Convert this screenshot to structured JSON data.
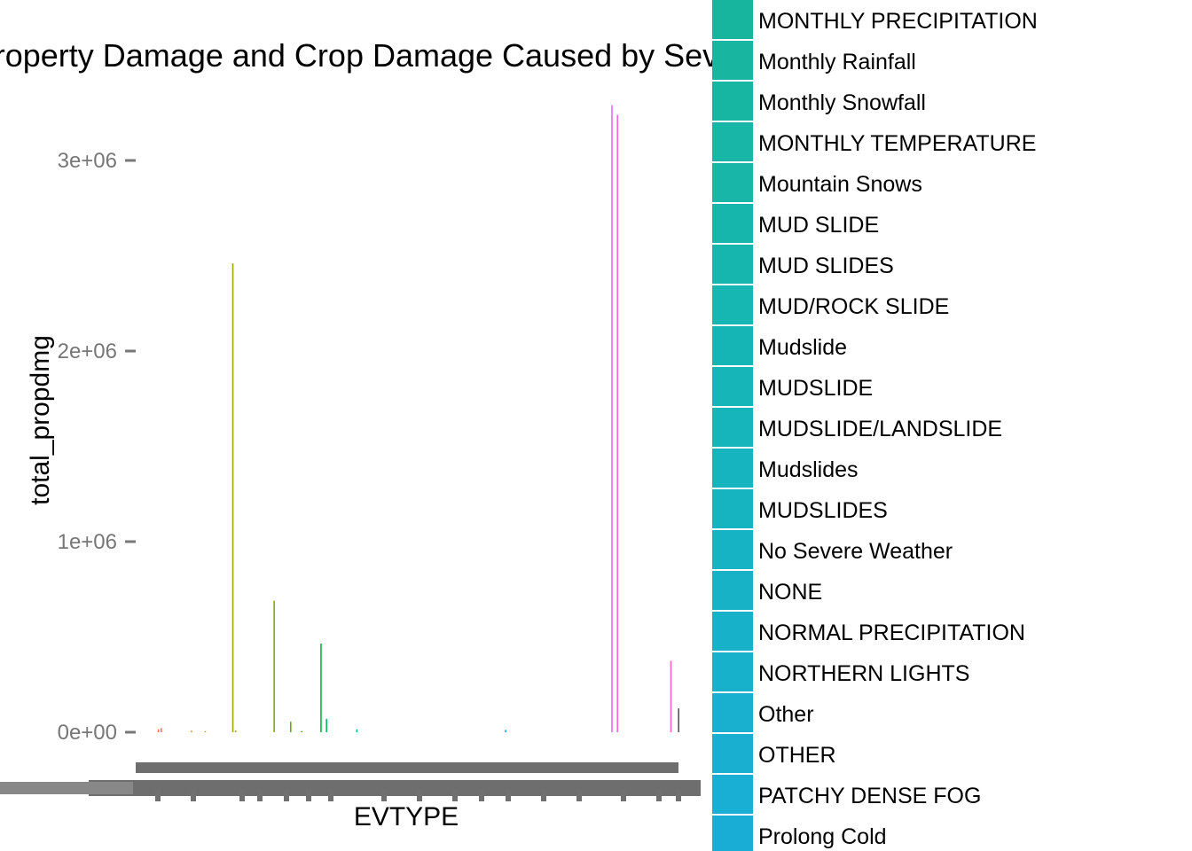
{
  "chart_data": {
    "type": "bar",
    "title": "Property Damage and Crop Damage Caused by Severe Events",
    "xlabel": "EVTYPE",
    "ylabel": "total_propdmg",
    "ylim": [
      0,
      3300000
    ],
    "yticks": [
      {
        "value": 0,
        "label": "0e+00"
      },
      {
        "value": 1000000,
        "label": "1e+06"
      },
      {
        "value": 2000000,
        "label": "2e+06"
      },
      {
        "value": 3000000,
        "label": "3e+06"
      }
    ],
    "grid": false,
    "legend_position": "right",
    "n_categories": 985,
    "bars": [
      {
        "index": 40,
        "value": 15000,
        "color": "#f8766d"
      },
      {
        "index": 45,
        "value": 22000,
        "color": "#f47a3f"
      },
      {
        "index": 100,
        "value": 8000,
        "color": "#c99800"
      },
      {
        "index": 125,
        "value": 6000,
        "color": "#b59f00"
      },
      {
        "index": 175,
        "value": 2460000,
        "color": "#a3a500"
      },
      {
        "index": 180,
        "value": 10000,
        "color": "#a3a500"
      },
      {
        "index": 250,
        "value": 690000,
        "color": "#7cae00"
      },
      {
        "index": 280,
        "value": 55000,
        "color": "#5bb300"
      },
      {
        "index": 300,
        "value": 6000,
        "color": "#39b600"
      },
      {
        "index": 335,
        "value": 465000,
        "color": "#00ba38"
      },
      {
        "index": 345,
        "value": 70000,
        "color": "#00bc59"
      },
      {
        "index": 400,
        "value": 15000,
        "color": "#00bf7d"
      },
      {
        "index": 670,
        "value": 12000,
        "color": "#00a9ff"
      },
      {
        "index": 863,
        "value": 3290000,
        "color": "#e76bf3"
      },
      {
        "index": 873,
        "value": 3240000,
        "color": "#f564e3"
      },
      {
        "index": 970,
        "value": 375000,
        "color": "#ff62bc"
      },
      {
        "index": 984,
        "value": 125000,
        "color": "#555555"
      }
    ],
    "legend_entries": [
      {
        "label": "MONTHLY PRECIPITATION",
        "color": "#18b59e"
      },
      {
        "label": "Monthly Rainfall",
        "color": "#18b5a0"
      },
      {
        "label": "Monthly Snowfall",
        "color": "#17b6a3"
      },
      {
        "label": "MONTHLY TEMPERATURE",
        "color": "#17b6a6"
      },
      {
        "label": "Mountain Snows",
        "color": "#17b6a9"
      },
      {
        "label": "MUD SLIDE",
        "color": "#16b6ac"
      },
      {
        "label": "MUD SLIDES",
        "color": "#16b6af"
      },
      {
        "label": "MUD/ROCK SLIDE",
        "color": "#16b6b2"
      },
      {
        "label": "Mudslide",
        "color": "#16b5b5"
      },
      {
        "label": "MUDSLIDE",
        "color": "#16b5b8"
      },
      {
        "label": "MUDSLIDE/LANDSLIDE",
        "color": "#16b4bb"
      },
      {
        "label": "Mudslides",
        "color": "#16b4be"
      },
      {
        "label": "MUDSLIDES",
        "color": "#16b3c1"
      },
      {
        "label": "No Severe Weather",
        "color": "#16b3c4"
      },
      {
        "label": "NONE",
        "color": "#17b2c6"
      },
      {
        "label": "NORMAL PRECIPITATION",
        "color": "#17b1c9"
      },
      {
        "label": "NORTHERN LIGHTS",
        "color": "#17b1cb"
      },
      {
        "label": "Other",
        "color": "#18b0ce"
      },
      {
        "label": "OTHER",
        "color": "#18afd0"
      },
      {
        "label": "PATCHY DENSE FOG",
        "color": "#19aed3"
      },
      {
        "label": "Prolong Cold",
        "color": "#19add5"
      }
    ]
  }
}
